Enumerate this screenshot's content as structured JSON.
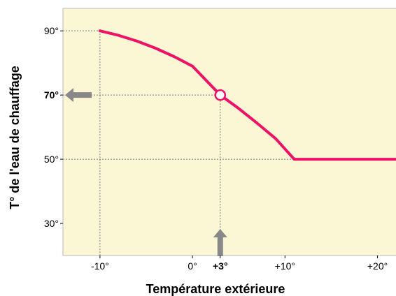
{
  "chart_data": {
    "type": "line",
    "title": "",
    "xlabel": "Température extérieure",
    "ylabel": "T° de l'eau de chauffage",
    "xlim": [
      -14,
      22
    ],
    "ylim": [
      20,
      97
    ],
    "x_ticks": [
      {
        "value": -10,
        "label": "-10°",
        "bold": false
      },
      {
        "value": 0,
        "label": "0°",
        "bold": false
      },
      {
        "value": 3,
        "label": "+3°",
        "bold": true
      },
      {
        "value": 10,
        "label": "+10°",
        "bold": false
      },
      {
        "value": 20,
        "label": "+20°",
        "bold": false
      }
    ],
    "y_ticks": [
      {
        "value": 30,
        "label": "30°",
        "bold": false
      },
      {
        "value": 50,
        "label": "50°",
        "bold": false
      },
      {
        "value": 70,
        "label": "70°",
        "bold": true
      },
      {
        "value": 90,
        "label": "90°",
        "bold": false
      }
    ],
    "series": [
      {
        "color": "#ee1166",
        "points": [
          {
            "x": -10,
            "y": 90
          },
          {
            "x": -8,
            "y": 88.6
          },
          {
            "x": -6,
            "y": 86.8
          },
          {
            "x": -4,
            "y": 84.6
          },
          {
            "x": -2,
            "y": 82.0
          },
          {
            "x": 0,
            "y": 79.0
          },
          {
            "x": 3,
            "y": 70.0
          },
          {
            "x": 5,
            "y": 65.8
          },
          {
            "x": 7,
            "y": 61.2
          },
          {
            "x": 9,
            "y": 56.4
          },
          {
            "x": 11,
            "y": 50.0
          },
          {
            "x": 22,
            "y": 50.0
          }
        ]
      }
    ],
    "highlight_point": {
      "x": 3,
      "y": 70
    },
    "guides": [
      {
        "from": [
          -14,
          90
        ],
        "to": [
          -10,
          90
        ]
      },
      {
        "from": [
          -10,
          90
        ],
        "to": [
          -10,
          20
        ]
      },
      {
        "from": [
          -14,
          70
        ],
        "to": [
          3,
          70
        ]
      },
      {
        "from": [
          3,
          70
        ],
        "to": [
          3,
          20
        ]
      },
      {
        "from": [
          -14,
          50
        ],
        "to": [
          22,
          50
        ]
      }
    ],
    "arrows": [
      {
        "direction": "left",
        "at_y": 70
      },
      {
        "direction": "up",
        "at_x": 3
      }
    ],
    "grid": false,
    "legend": "none",
    "colors": {
      "plot_background": "#fbf6d4",
      "plot_border": "#b9b9b9",
      "curve": "#ee1166",
      "guide": "#777777",
      "arrow": "#888888",
      "text": "#000000"
    }
  }
}
